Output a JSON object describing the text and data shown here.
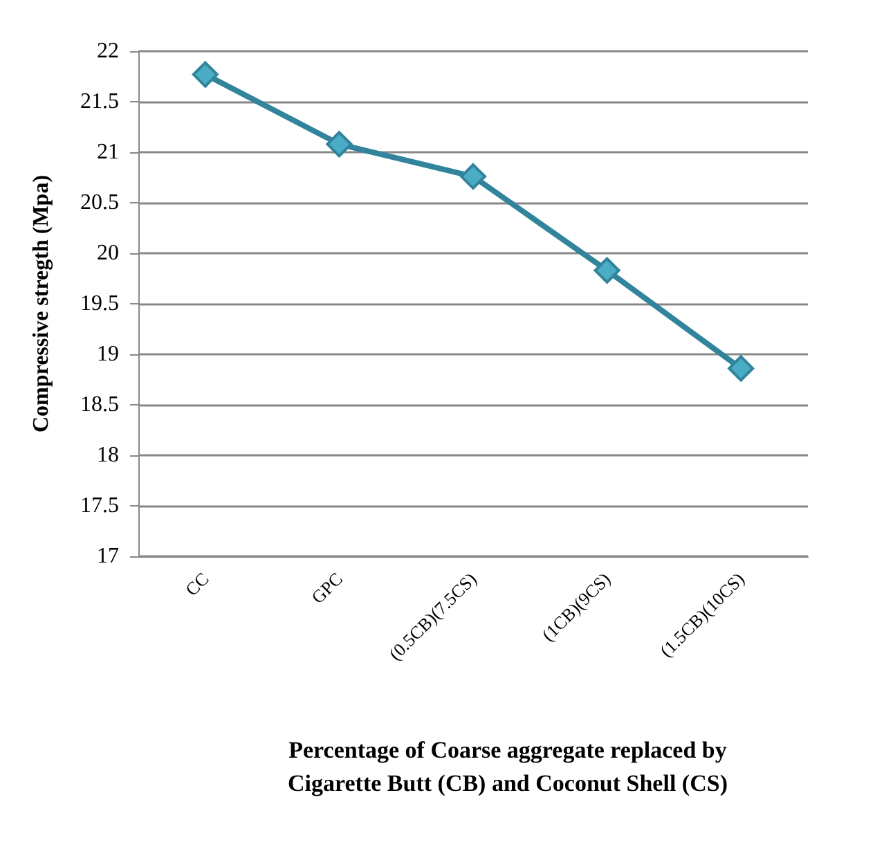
{
  "chart_data": {
    "type": "line",
    "xlabel": "Percentage of Coarse aggregate replaced by\nCigarette Butt (CB) and Coconut Shell (CS)",
    "ylabel": "Compressive stregth (Mpa)",
    "categories": [
      "CC",
      "GPC",
      "(0.5CB)(7.5CS)",
      "(1CB)(9CS)",
      "(1.5CB)(10CS)"
    ],
    "series": [
      {
        "color": "#31849b",
        "values": [
          21.77,
          21.08,
          20.76,
          19.83,
          18.86
        ]
      }
    ],
    "ylim": [
      17,
      22
    ],
    "yticks": [
      17,
      17.5,
      18,
      18.5,
      19,
      19.5,
      20,
      20.5,
      21,
      21.5,
      22
    ],
    "grid": "y",
    "marker": "diamond",
    "line_style": "solid"
  }
}
